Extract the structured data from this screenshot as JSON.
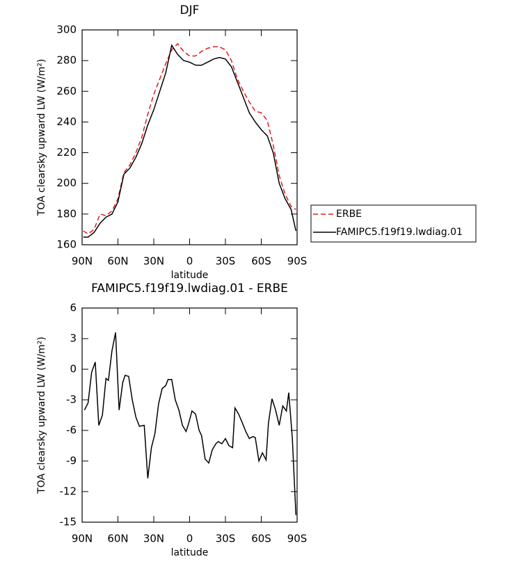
{
  "chart_data": [
    {
      "type": "line",
      "title": "DJF",
      "x_label": "latitude",
      "y_label": "TOA clearsky upward LW (W/m²)",
      "x": [
        89,
        85,
        80,
        75,
        70,
        65,
        60,
        55,
        50,
        45,
        40,
        35,
        30,
        25,
        20,
        15,
        10,
        5,
        0,
        -5,
        -10,
        -15,
        -20,
        -25,
        -30,
        -35,
        -40,
        -45,
        -50,
        -55,
        -60,
        -65,
        -70,
        -75,
        -80,
        -85,
        -89
      ],
      "series": [
        {
          "name": "ERBE",
          "color": "#e41a1c",
          "style": "dashed",
          "values": [
            169,
            167,
            170,
            180,
            179,
            182,
            190,
            207,
            212,
            220,
            230,
            245,
            258,
            268,
            278,
            287,
            291,
            286,
            283,
            283,
            286,
            288,
            289,
            289,
            287,
            280,
            268,
            260,
            253,
            247,
            246,
            241,
            225,
            205,
            193,
            185,
            183
          ]
        },
        {
          "name": "FAMIPC5.f19f19.lwdiag.01",
          "color": "#000000",
          "style": "solid",
          "values": [
            165,
            165,
            168,
            174,
            178,
            180,
            188,
            206,
            210,
            217,
            226,
            238,
            248,
            260,
            272,
            290,
            284,
            280,
            279,
            277,
            277,
            279,
            281,
            282,
            281,
            276,
            266,
            256,
            246,
            240,
            235,
            231,
            220,
            200,
            190,
            183,
            169
          ]
        }
      ],
      "xlim": [
        90,
        -90
      ],
      "xticks": [
        {
          "value": 90,
          "label": "90N"
        },
        {
          "value": 60,
          "label": "60N"
        },
        {
          "value": 30,
          "label": "30N"
        },
        0,
        {
          "value": -30,
          "label": "30S"
        },
        {
          "value": -60,
          "label": "60S"
        },
        {
          "value": -90,
          "label": "90S"
        }
      ],
      "ylim": [
        160,
        300
      ],
      "yticks": [
        160,
        180,
        200,
        220,
        240,
        260,
        280,
        300
      ],
      "legend": "outside-right"
    },
    {
      "type": "line",
      "title": "FAMIPC5.f19f19.lwdiag.01 - ERBE",
      "x_label": "latitude",
      "y_label": "TOA clearsky upward LW (W/m²)",
      "x": [
        88,
        85,
        82,
        79,
        76,
        73,
        70,
        68,
        65,
        62,
        59,
        56,
        54,
        51,
        48,
        45,
        42,
        38,
        35,
        32,
        29,
        26,
        23,
        20,
        18,
        15,
        12,
        9,
        6,
        3,
        1,
        -2,
        -5,
        -8,
        -10,
        -13,
        -16,
        -19,
        -22,
        -24,
        -27,
        -30,
        -33,
        -36,
        -38,
        -41,
        -44,
        -47,
        -50,
        -53,
        -55,
        -58,
        -61,
        -64,
        -66,
        -69,
        -72,
        -75,
        -78,
        -81,
        -83,
        -86,
        -89
      ],
      "series": [
        {
          "color": "#000000",
          "style": "solid",
          "values": [
            -4.0,
            -3.3,
            -0.3,
            0.7,
            -5.5,
            -4.5,
            -0.9,
            -1.1,
            1.8,
            3.6,
            -4.0,
            -1.3,
            -0.6,
            -0.7,
            -3.0,
            -4.7,
            -5.6,
            -5.5,
            -10.7,
            -7.7,
            -6.3,
            -3.4,
            -1.9,
            -1.6,
            -1.0,
            -1.0,
            -3.0,
            -4.0,
            -5.5,
            -6.1,
            -5.4,
            -4.1,
            -4.4,
            -6.0,
            -6.5,
            -8.8,
            -9.2,
            -7.9,
            -7.3,
            -7.1,
            -7.3,
            -6.8,
            -7.5,
            -7.7,
            -3.8,
            -4.4,
            -5.2,
            -6.1,
            -6.8,
            -6.6,
            -6.7,
            -9.0,
            -8.2,
            -8.9,
            -5.3,
            -2.9,
            -4.0,
            -5.5,
            -3.6,
            -4.1,
            -2.3,
            -6.7,
            -14.3
          ]
        }
      ],
      "xlim": [
        90,
        -90
      ],
      "xticks": [
        {
          "value": 90,
          "label": "90N"
        },
        {
          "value": 60,
          "label": "60N"
        },
        {
          "value": 30,
          "label": "30N"
        },
        0,
        {
          "value": -30,
          "label": "30S"
        },
        {
          "value": -60,
          "label": "60S"
        },
        {
          "value": -90,
          "label": "90S"
        }
      ],
      "ylim": [
        -15,
        6
      ],
      "yticks": [
        -15,
        -12,
        -9,
        -6,
        -3,
        0,
        3,
        6
      ]
    }
  ]
}
